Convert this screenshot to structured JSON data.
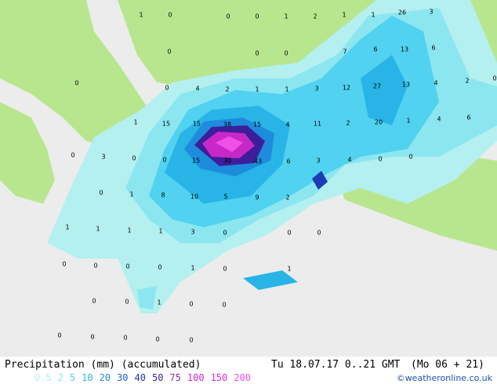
{
  "map": {
    "point_values": [
      1,
      0,
      0,
      0,
      1,
      2,
      1,
      1,
      26,
      3,
      0,
      0,
      0,
      7,
      6,
      13,
      6,
      0,
      0,
      4,
      2,
      1,
      1,
      3,
      12,
      27,
      13,
      4,
      2,
      0,
      1,
      15,
      15,
      38,
      15,
      4,
      11,
      2,
      20,
      1,
      4,
      6,
      0,
      3,
      0,
      0,
      15,
      30,
      43,
      6,
      3,
      4,
      0,
      0,
      0,
      1,
      8,
      10,
      5,
      9,
      2,
      1,
      1,
      1,
      1,
      3,
      0,
      0,
      0,
      0,
      0,
      0,
      0,
      1,
      0,
      1,
      0,
      0,
      1,
      0,
      0,
      0,
      0,
      0,
      0,
      0
    ]
  },
  "footer": {
    "title": "Precipitation (mm) (accumulated)",
    "time": "Tu 18.07.17 0..21 GMT",
    "run": "(Mo 06 + 21)",
    "credit": "©weatheronline.co.uk",
    "legend": [
      {
        "value": 0.5,
        "color": "#b4f0f0"
      },
      {
        "value": 2,
        "color": "#8ce6f0"
      },
      {
        "value": 5,
        "color": "#50d2f0"
      },
      {
        "value": 10,
        "color": "#28b4e6"
      },
      {
        "value": 20,
        "color": "#1e8cdc"
      },
      {
        "value": 30,
        "color": "#1e64c8"
      },
      {
        "value": 40,
        "color": "#1e3cb4"
      },
      {
        "value": 50,
        "color": "#3c1e9c"
      },
      {
        "value": 75,
        "color": "#8c28b4"
      },
      {
        "value": 100,
        "color": "#c828c8"
      },
      {
        "value": 150,
        "color": "#e628dc"
      },
      {
        "value": 200,
        "color": "#f050e6"
      }
    ]
  }
}
